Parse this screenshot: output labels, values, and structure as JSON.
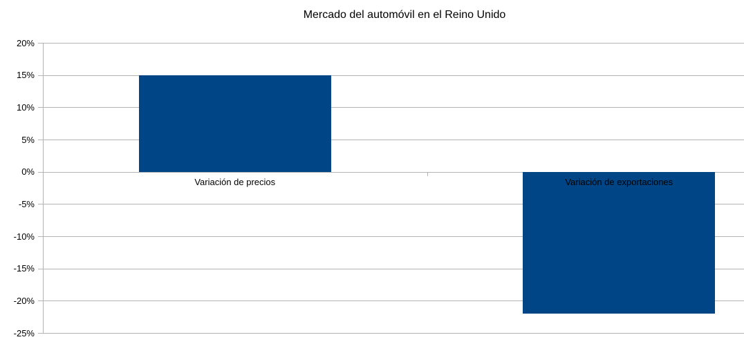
{
  "chart_data": {
    "type": "bar",
    "title": "Mercado del automóvil en el Reino Unido",
    "categories": [
      "Variación de precios",
      "Variación de exportaciones"
    ],
    "values": [
      15,
      -22
    ],
    "value_unit": "%",
    "xlabel": "",
    "ylabel": "",
    "ylim": [
      -25,
      20
    ],
    "ytick_step": 5,
    "ytick_labels": [
      "20%",
      "15%",
      "10%",
      "5%",
      "0%",
      "-5%",
      "-10%",
      "-15%",
      "-20%",
      "-25%"
    ],
    "grid": true,
    "legend": "none",
    "colors": {
      "bar": "#004586",
      "gridline": "#b3b3b3",
      "axis": "#b3b3b3",
      "text": "#000000",
      "background": "#ffffff"
    }
  }
}
